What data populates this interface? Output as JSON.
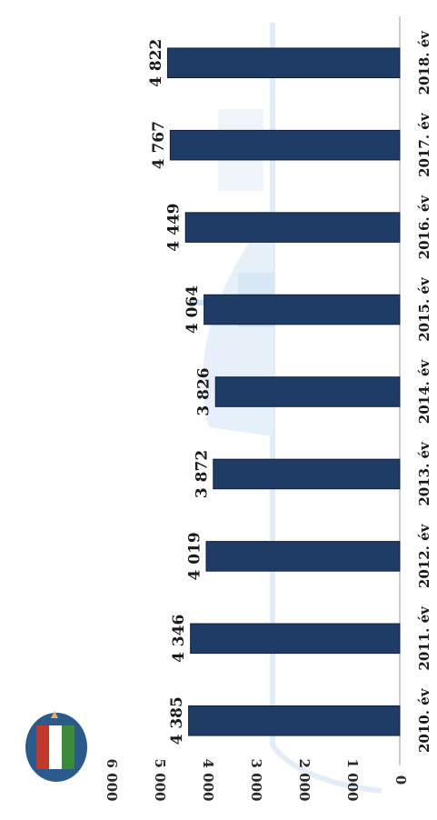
{
  "chart_data": {
    "type": "bar",
    "orientation": "rotated-90",
    "title": "",
    "xlabel": "",
    "ylabel": "",
    "categories": [
      "2010. év",
      "2011. év",
      "2012. év",
      "2013. év",
      "2014. év",
      "2015. év",
      "2016. év",
      "2017. év",
      "2018. év"
    ],
    "values": [
      4385,
      4346,
      4019,
      3872,
      3826,
      4064,
      4449,
      4767,
      4822
    ],
    "value_labels": [
      "4 385",
      "4 346",
      "4 019",
      "3 872",
      "3 826",
      "4 064",
      "4 449",
      "4 767",
      "4 822"
    ],
    "ylim": [
      0,
      6000
    ],
    "y_ticks": [
      0,
      1000,
      2000,
      3000,
      4000,
      5000,
      6000
    ],
    "y_tick_labels": [
      "0",
      "1 000",
      "2 000",
      "3 000",
      "4 000",
      "5 000",
      "6 000"
    ],
    "grid": false,
    "legend": "none",
    "colors": {
      "bar": "#1f3c66",
      "bar_edge": "#0e2038",
      "axis": "#9a9a9a",
      "text": "#1a1a1a",
      "watermark": "#b9d4ee"
    }
  },
  "decoration": {
    "logo_icon": "coat-of-arms-icon",
    "watermark_icon": "ship-watermark-icon"
  }
}
